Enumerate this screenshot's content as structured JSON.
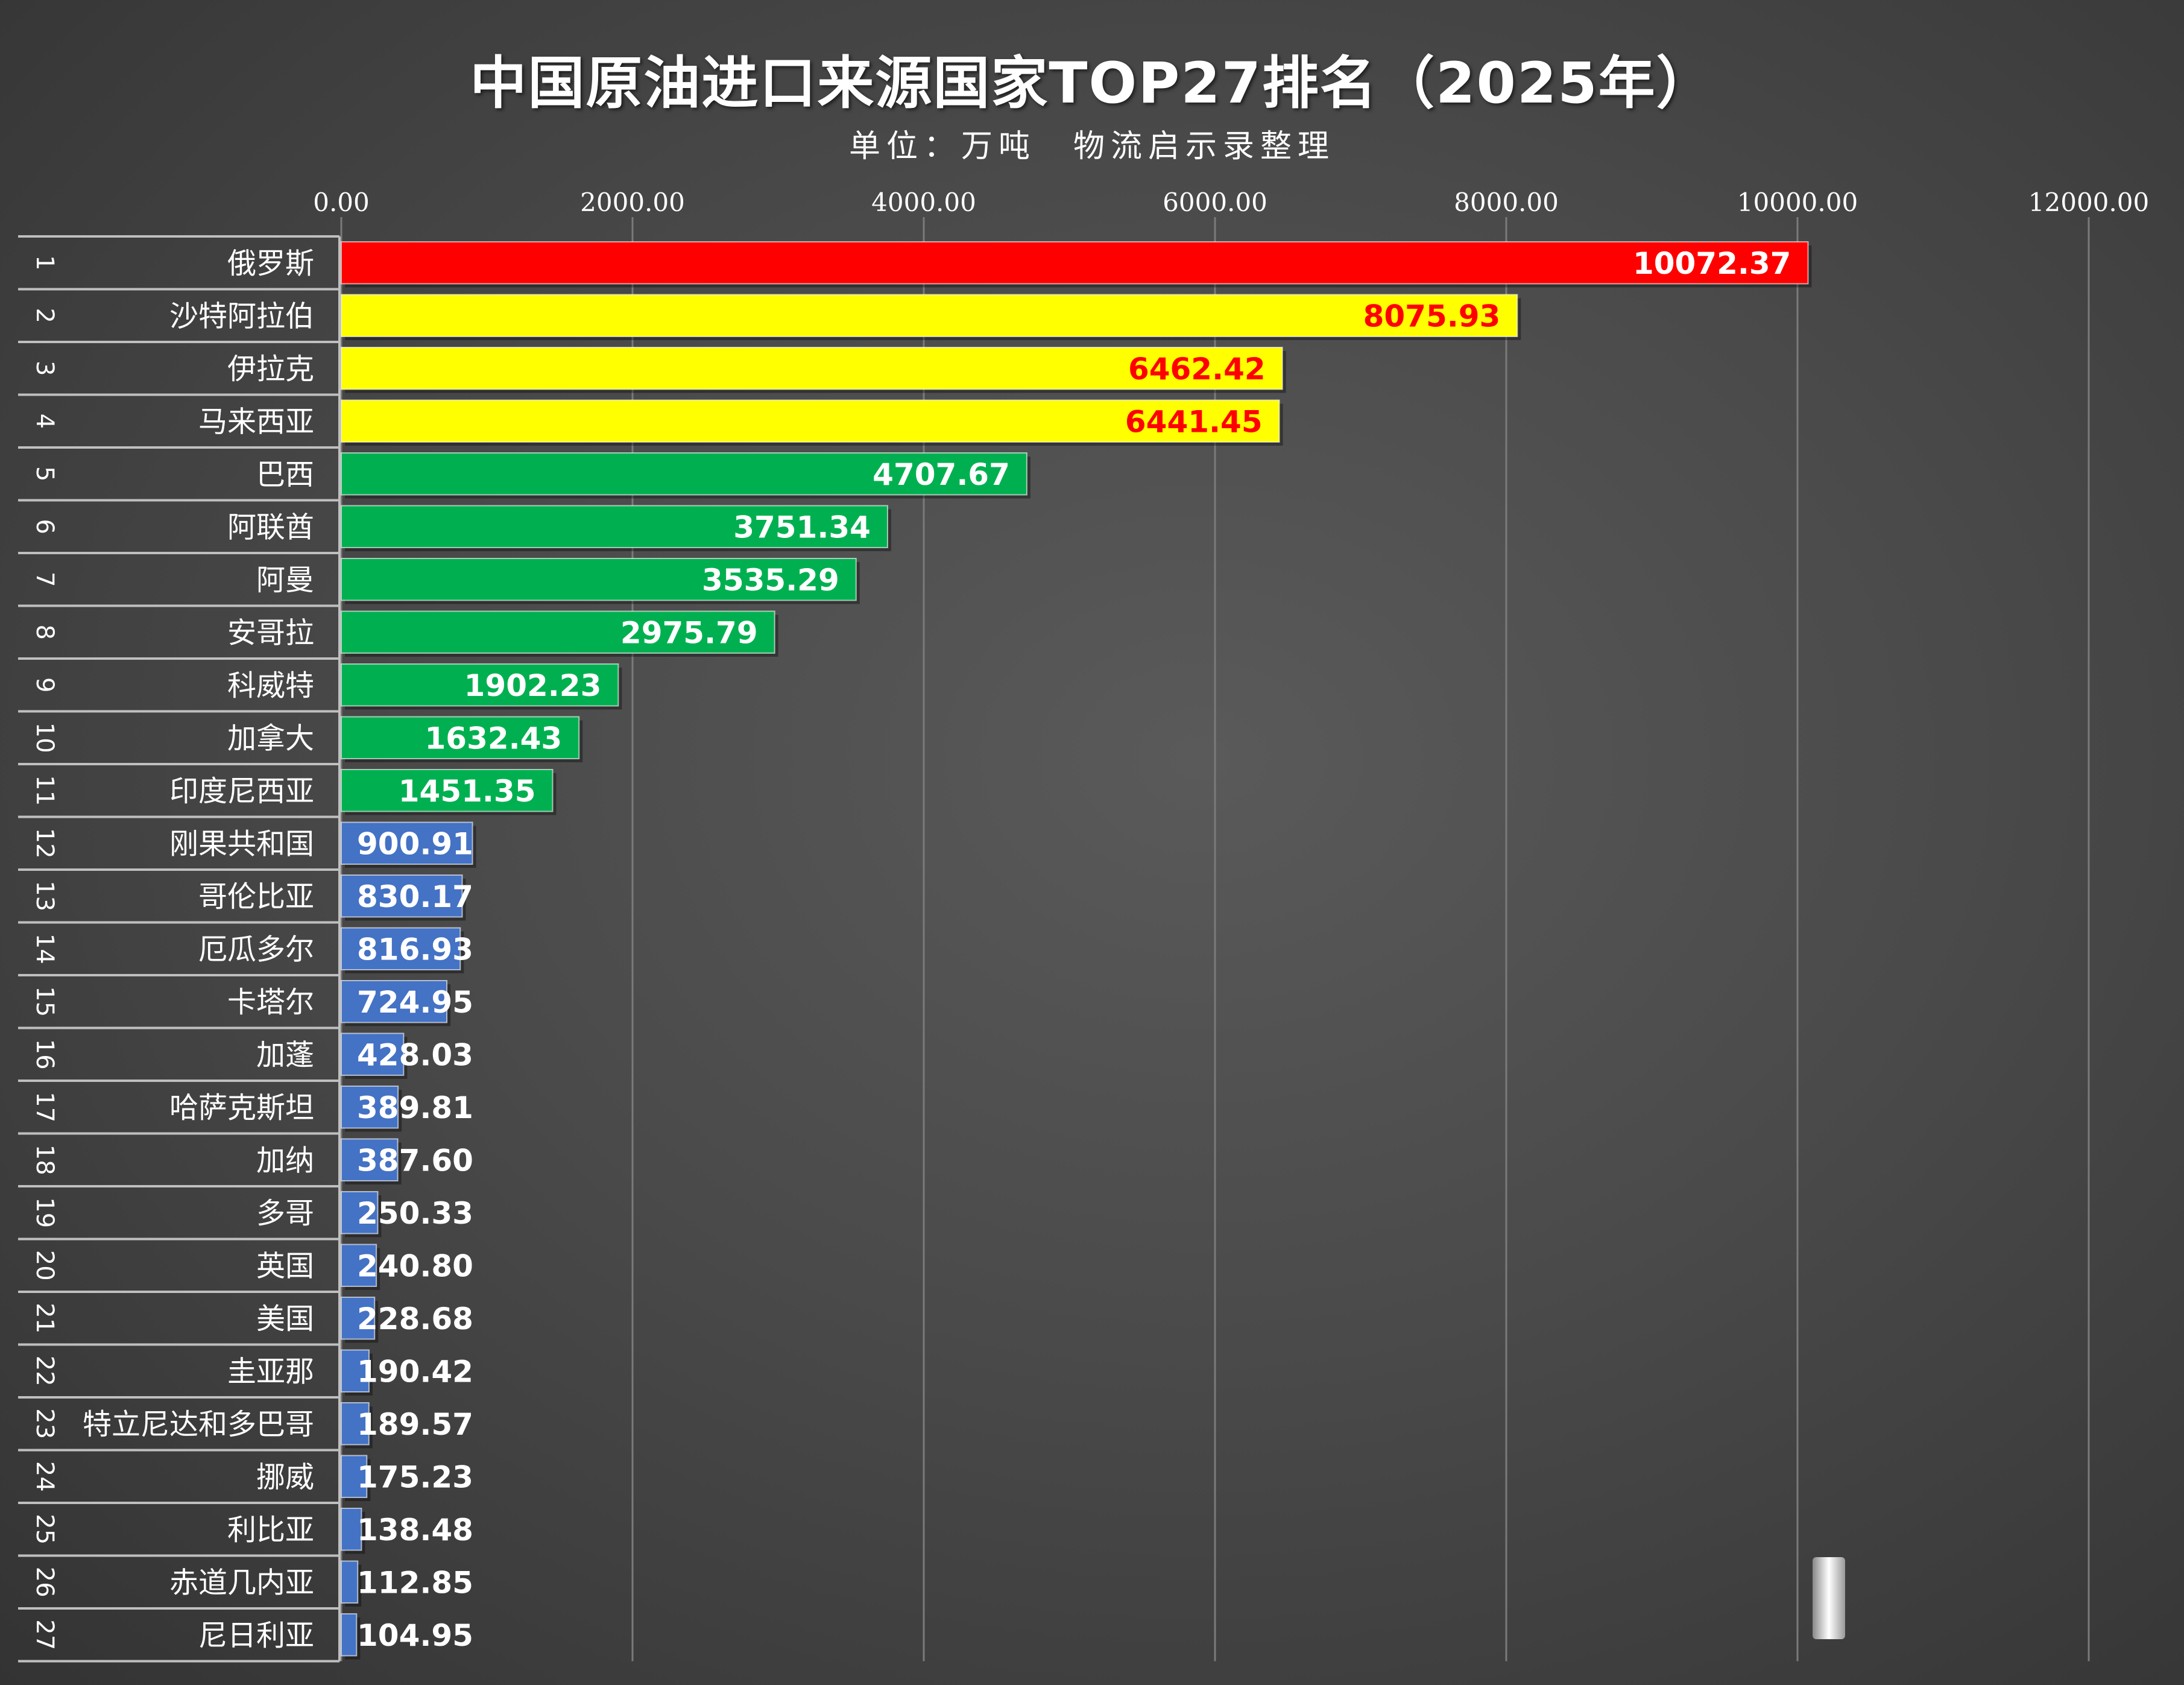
{
  "chart_data": {
    "type": "bar",
    "orientation": "horizontal",
    "title": "中国原油进口来源国家TOP27排名（2025年）",
    "subtitle": "单位：万吨　物流启示录整理",
    "x_ticks": [
      "0.00",
      "2000.00",
      "4000.00",
      "6000.00",
      "8000.00",
      "10000.00",
      "12000.00"
    ],
    "xlim": [
      0,
      12000
    ],
    "grid": "vertical",
    "ranks": [
      "1",
      "2",
      "3",
      "4",
      "5",
      "6",
      "7",
      "8",
      "9",
      "10",
      "11",
      "12",
      "13",
      "14",
      "15",
      "16",
      "17",
      "18",
      "19",
      "20",
      "21",
      "22",
      "23",
      "24",
      "25",
      "26",
      "27"
    ],
    "categories": [
      "俄罗斯",
      "沙特阿拉伯",
      "伊拉克",
      "马来西亚",
      "巴西",
      "阿联酋",
      "阿曼",
      "安哥拉",
      "科威特",
      "加拿大",
      "印度尼西亚",
      "刚果共和国",
      "哥伦比亚",
      "厄瓜多尔",
      "卡塔尔",
      "加蓬",
      "哈萨克斯坦",
      "加纳",
      "多哥",
      "英国",
      "美国",
      "圭亚那",
      "特立尼达和多巴哥",
      "挪威",
      "利比亚",
      "赤道几内亚",
      "尼日利亚"
    ],
    "values": [
      10072.37,
      8075.93,
      6462.42,
      6441.45,
      4707.67,
      3751.34,
      3535.29,
      2975.79,
      1902.23,
      1632.43,
      1451.35,
      900.91,
      830.17,
      816.93,
      724.95,
      428.03,
      389.81,
      387.6,
      250.33,
      240.8,
      228.68,
      190.42,
      189.57,
      175.23,
      138.48,
      112.85,
      104.95
    ],
    "value_labels": [
      "10072.37",
      "8075.93",
      "6462.42",
      "6441.45",
      "4707.67",
      "3751.34",
      "3535.29",
      "2975.79",
      "1902.23",
      "1632.43",
      "1451.35",
      "900.91",
      "830.17",
      "816.93",
      "724.95",
      "428.03",
      "389.81",
      "387.60",
      "250.33",
      "240.80",
      "228.68",
      "190.42",
      "189.57",
      "175.23",
      "138.48",
      "112.85",
      "104.95"
    ],
    "bar_colors": {
      "rank1": "#ff0000",
      "rank2_4": "#ffff00",
      "rank5_11": "#00b050",
      "rank12_27": "#4472c4"
    },
    "label_colors": {
      "rank1": "#ffffff",
      "rank2_4": "#ff0000",
      "others": "#ffffff"
    }
  }
}
